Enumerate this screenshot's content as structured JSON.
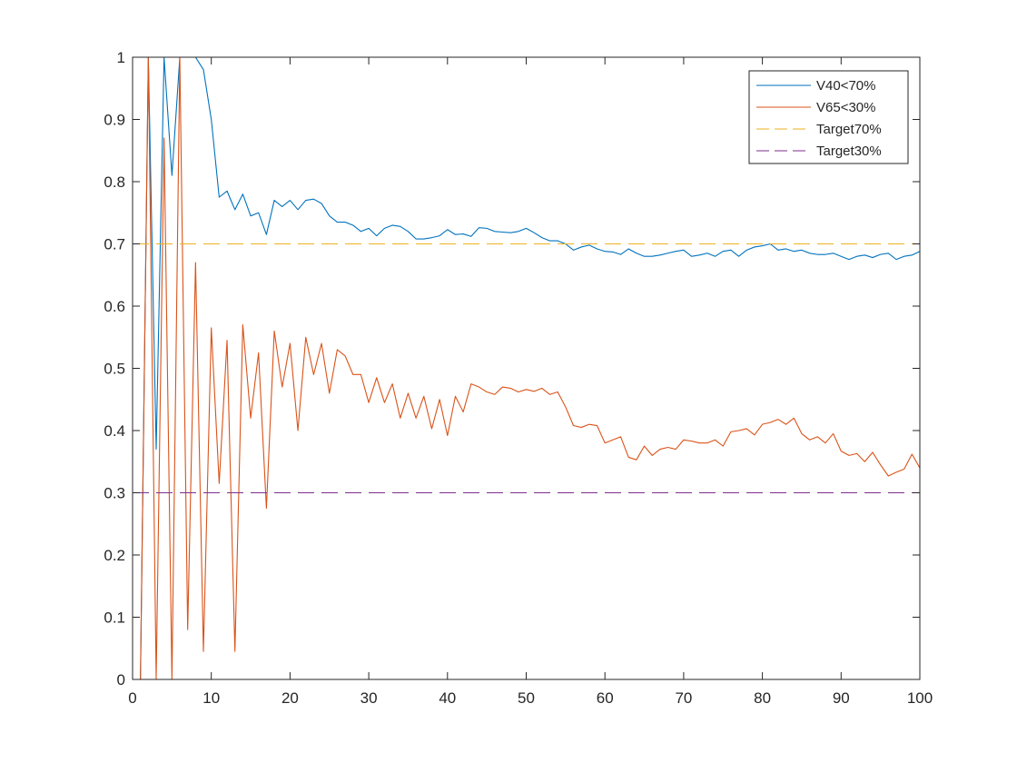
{
  "chart_data": {
    "type": "line",
    "title": "",
    "xlabel": "",
    "ylabel": "",
    "xlim": [
      0,
      100
    ],
    "ylim": [
      0,
      1
    ],
    "xticks": [
      0,
      10,
      20,
      30,
      40,
      50,
      60,
      70,
      80,
      90,
      100
    ],
    "yticks": [
      0,
      0.1,
      0.2,
      0.3,
      0.4,
      0.5,
      0.6,
      0.7,
      0.8,
      0.9,
      1
    ],
    "xtick_labels": [
      "0",
      "10",
      "20",
      "30",
      "40",
      "50",
      "60",
      "70",
      "80",
      "90",
      "100"
    ],
    "ytick_labels": [
      "0",
      "0.1",
      "0.2",
      "0.3",
      "0.4",
      "0.5",
      "0.6",
      "0.7",
      "0.8",
      "0.9",
      "1"
    ],
    "grid": false,
    "legend_position": "top-right",
    "series": [
      {
        "name": "V40<70%",
        "color": "#0072BD",
        "style": "solid",
        "x": [
          1,
          2,
          3,
          4,
          5,
          6,
          7,
          8,
          9,
          10,
          11,
          12,
          13,
          14,
          15,
          16,
          17,
          18,
          19,
          20,
          21,
          22,
          23,
          24,
          25,
          26,
          27,
          28,
          29,
          30,
          31,
          32,
          33,
          34,
          35,
          36,
          37,
          38,
          39,
          40,
          41,
          42,
          43,
          44,
          45,
          46,
          47,
          48,
          49,
          50,
          51,
          52,
          53,
          54,
          55,
          56,
          57,
          58,
          59,
          60,
          61,
          62,
          63,
          64,
          65,
          66,
          67,
          68,
          69,
          70,
          71,
          72,
          73,
          74,
          75,
          76,
          77,
          78,
          79,
          80,
          81,
          82,
          83,
          84,
          85,
          86,
          87,
          88,
          89,
          90,
          91,
          92,
          93,
          94,
          95,
          96,
          97,
          98,
          99,
          100
        ],
        "y": [
          0,
          1,
          0.37,
          1,
          0.81,
          1,
          1,
          1,
          0.98,
          0.9,
          0.775,
          0.785,
          0.755,
          0.78,
          0.745,
          0.75,
          0.715,
          0.77,
          0.76,
          0.77,
          0.755,
          0.77,
          0.772,
          0.765,
          0.745,
          0.735,
          0.735,
          0.73,
          0.72,
          0.725,
          0.713,
          0.725,
          0.73,
          0.728,
          0.72,
          0.708,
          0.708,
          0.71,
          0.713,
          0.723,
          0.715,
          0.716,
          0.712,
          0.726,
          0.725,
          0.72,
          0.719,
          0.718,
          0.72,
          0.725,
          0.718,
          0.71,
          0.705,
          0.705,
          0.7,
          0.69,
          0.695,
          0.698,
          0.692,
          0.688,
          0.687,
          0.683,
          0.692,
          0.685,
          0.68,
          0.68,
          0.682,
          0.685,
          0.688,
          0.69,
          0.68,
          0.682,
          0.685,
          0.68,
          0.688,
          0.69,
          0.68,
          0.69,
          0.695,
          0.697,
          0.7,
          0.69,
          0.692,
          0.688,
          0.69,
          0.685,
          0.683,
          0.683,
          0.685,
          0.68,
          0.675,
          0.68,
          0.682,
          0.678,
          0.683,
          0.685,
          0.675,
          0.68,
          0.682,
          0.688
        ]
      },
      {
        "name": "V65<30%",
        "color": "#D95319",
        "style": "solid",
        "x": [
          1,
          2,
          3,
          4,
          5,
          6,
          7,
          8,
          9,
          10,
          11,
          12,
          13,
          14,
          15,
          16,
          17,
          18,
          19,
          20,
          21,
          22,
          23,
          24,
          25,
          26,
          27,
          28,
          29,
          30,
          31,
          32,
          33,
          34,
          35,
          36,
          37,
          38,
          39,
          40,
          41,
          42,
          43,
          44,
          45,
          46,
          47,
          48,
          49,
          50,
          51,
          52,
          53,
          54,
          55,
          56,
          57,
          58,
          59,
          60,
          61,
          62,
          63,
          64,
          65,
          66,
          67,
          68,
          69,
          70,
          71,
          72,
          73,
          74,
          75,
          76,
          77,
          78,
          79,
          80,
          81,
          82,
          83,
          84,
          85,
          86,
          87,
          88,
          89,
          90,
          91,
          92,
          93,
          94,
          95,
          96,
          97,
          98,
          99,
          100
        ],
        "y": [
          0,
          1,
          0,
          0.87,
          0,
          1,
          0.08,
          0.67,
          0.045,
          0.565,
          0.315,
          0.545,
          0.045,
          0.57,
          0.42,
          0.525,
          0.275,
          0.56,
          0.47,
          0.54,
          0.4,
          0.55,
          0.49,
          0.54,
          0.46,
          0.53,
          0.52,
          0.49,
          0.49,
          0.445,
          0.485,
          0.445,
          0.475,
          0.42,
          0.46,
          0.42,
          0.455,
          0.403,
          0.45,
          0.392,
          0.455,
          0.43,
          0.475,
          0.47,
          0.462,
          0.458,
          0.47,
          0.468,
          0.462,
          0.466,
          0.463,
          0.468,
          0.458,
          0.462,
          0.438,
          0.408,
          0.405,
          0.41,
          0.408,
          0.38,
          0.385,
          0.39,
          0.357,
          0.353,
          0.375,
          0.36,
          0.37,
          0.373,
          0.37,
          0.385,
          0.383,
          0.38,
          0.38,
          0.385,
          0.375,
          0.398,
          0.4,
          0.403,
          0.393,
          0.41,
          0.413,
          0.418,
          0.41,
          0.42,
          0.395,
          0.385,
          0.39,
          0.38,
          0.395,
          0.367,
          0.36,
          0.363,
          0.35,
          0.365,
          0.345,
          0.327,
          0.333,
          0.338,
          0.362,
          0.34
        ]
      },
      {
        "name": "Target70%",
        "color": "#EDB120",
        "style": "dashed",
        "x": [
          0,
          100
        ],
        "y": [
          0.7,
          0.7
        ]
      },
      {
        "name": "Target30%",
        "color": "#7E2F8E",
        "style": "dashed",
        "x": [
          0,
          100
        ],
        "y": [
          0.3,
          0.3
        ]
      }
    ]
  }
}
